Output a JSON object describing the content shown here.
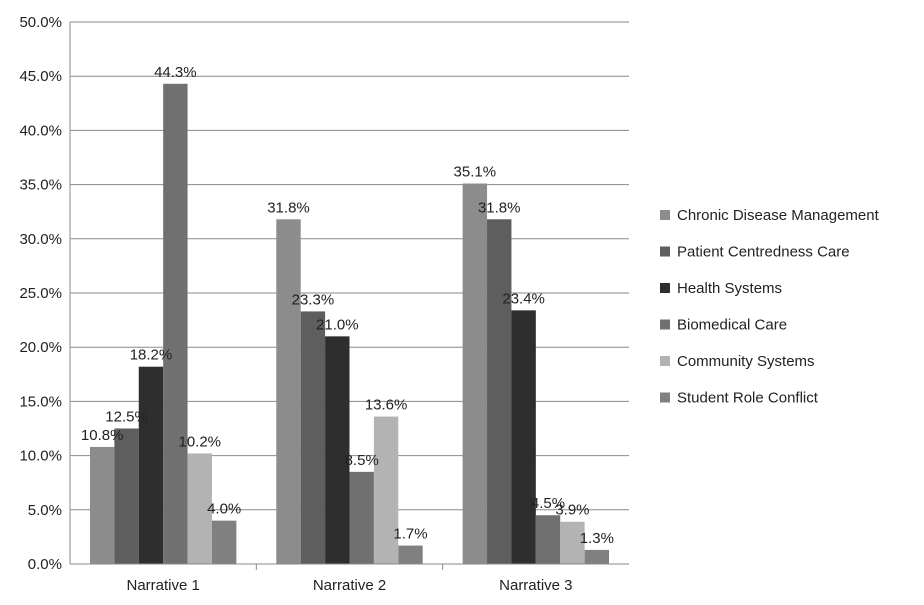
{
  "chart_data": {
    "type": "bar",
    "title": "",
    "xlabel": "",
    "ylabel": "",
    "categories": [
      "Narrative 1",
      "Narrative 2",
      "Narrative 3"
    ],
    "ylim": [
      0,
      50
    ],
    "yticks": [
      0,
      5,
      10,
      15,
      20,
      25,
      30,
      35,
      40,
      45,
      50
    ],
    "ytick_labels": [
      "0.0%",
      "5.0%",
      "10.0%",
      "15.0%",
      "20.0%",
      "25.0%",
      "30.0%",
      "35.0%",
      "40.0%",
      "45.0%",
      "50.0%"
    ],
    "grid": true,
    "legend_position": "right",
    "series": [
      {
        "name": "Chronic Disease Management",
        "color": "#8c8c8c",
        "values": [
          10.8,
          31.8,
          35.1
        ],
        "labels": [
          "10.8%",
          "31.8%",
          "35.1%"
        ]
      },
      {
        "name": "Patient Centredness Care",
        "color": "#5e5e5e",
        "values": [
          12.5,
          23.3,
          31.8
        ],
        "labels": [
          "12.5%",
          "23.3%",
          "31.8%"
        ]
      },
      {
        "name": "Health Systems",
        "color": "#2e2e2e",
        "values": [
          18.2,
          21.0,
          23.4
        ],
        "labels": [
          "18.2%",
          "21.0%",
          "23.4%"
        ]
      },
      {
        "name": "Biomedical Care",
        "color": "#707070",
        "values": [
          44.3,
          8.5,
          4.5
        ],
        "labels": [
          "44.3%",
          "8.5%",
          "4.5%"
        ]
      },
      {
        "name": "Community Systems",
        "color": "#b3b3b3",
        "values": [
          10.2,
          13.6,
          3.9
        ],
        "labels": [
          "10.2%",
          "13.6%",
          "3.9%"
        ]
      },
      {
        "name": "Student Role Conflict",
        "color": "#808080",
        "values": [
          4.0,
          1.7,
          1.3
        ],
        "labels": [
          "4.0%",
          "1.7%",
          "1.3%"
        ]
      }
    ]
  }
}
